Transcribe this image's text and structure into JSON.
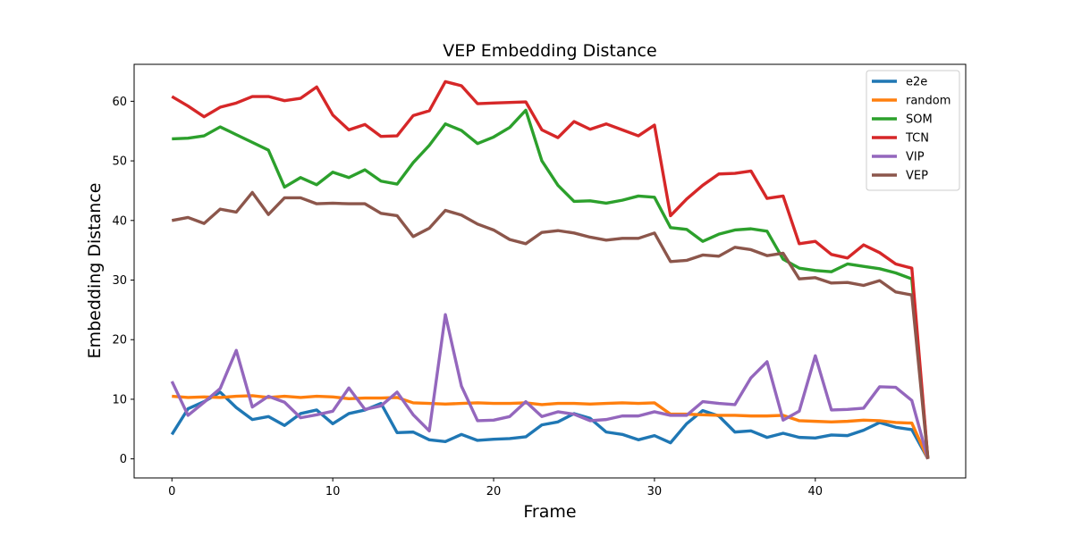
{
  "chart_data": {
    "type": "line",
    "title": "VEP Embedding Distance",
    "xlabel": "Frame",
    "ylabel": "Embedding Distance",
    "xlim": [
      -2.35,
      49.35
    ],
    "ylim": [
      -3.2,
      66.2
    ],
    "xticks": [
      0,
      10,
      20,
      30,
      40
    ],
    "yticks": [
      0,
      10,
      20,
      30,
      40,
      50,
      60
    ],
    "grid": false,
    "legend": "top-right",
    "x": [
      0,
      1,
      2,
      3,
      4,
      5,
      6,
      7,
      8,
      9,
      10,
      11,
      12,
      13,
      14,
      15,
      16,
      17,
      18,
      19,
      20,
      21,
      22,
      23,
      24,
      25,
      26,
      27,
      28,
      29,
      30,
      31,
      32,
      33,
      34,
      35,
      36,
      37,
      38,
      39,
      40,
      41,
      42,
      43,
      44,
      45,
      46,
      47
    ],
    "series": [
      {
        "name": "e2e",
        "color": "#1f77b4",
        "values": [
          4.1,
          8.4,
          9.6,
          11.2,
          8.6,
          6.6,
          7.1,
          5.6,
          7.6,
          8.2,
          5.9,
          7.6,
          8.2,
          9.3,
          4.4,
          4.5,
          3.2,
          2.9,
          4.1,
          3.1,
          3.3,
          3.4,
          3.7,
          5.7,
          6.2,
          7.6,
          6.8,
          4.5,
          4.1,
          3.2,
          3.9,
          2.7,
          5.9,
          8.1,
          7.2,
          4.5,
          4.7,
          3.6,
          4.3,
          3.6,
          3.5,
          4.0,
          3.9,
          4.8,
          6.1,
          5.3,
          4.9,
          0.0
        ]
      },
      {
        "name": "random",
        "color": "#ff7f0e",
        "values": [
          10.5,
          10.3,
          10.4,
          10.3,
          10.5,
          10.6,
          10.3,
          10.5,
          10.3,
          10.5,
          10.4,
          10.1,
          10.2,
          10.2,
          10.3,
          9.4,
          9.3,
          9.2,
          9.3,
          9.4,
          9.3,
          9.3,
          9.4,
          9.1,
          9.3,
          9.3,
          9.2,
          9.3,
          9.4,
          9.3,
          9.4,
          7.5,
          7.5,
          7.4,
          7.3,
          7.3,
          7.2,
          7.2,
          7.3,
          6.4,
          6.3,
          6.2,
          6.3,
          6.5,
          6.4,
          6.1,
          6.0,
          0.0
        ]
      },
      {
        "name": "SOM",
        "color": "#2ca02c",
        "values": [
          53.7,
          53.8,
          54.2,
          55.7,
          54.4,
          53.1,
          51.8,
          45.6,
          47.2,
          46.0,
          48.1,
          47.2,
          48.5,
          46.6,
          46.1,
          49.7,
          52.6,
          56.2,
          55.1,
          52.9,
          54.0,
          55.6,
          58.5,
          50.0,
          45.9,
          43.2,
          43.3,
          42.9,
          43.4,
          44.1,
          43.9,
          38.8,
          38.5,
          36.5,
          37.7,
          38.4,
          38.6,
          38.2,
          33.5,
          32.0,
          31.6,
          31.4,
          32.7,
          32.3,
          31.9,
          31.2,
          30.2,
          0.0
        ]
      },
      {
        "name": "TCN",
        "color": "#d62728",
        "values": [
          60.8,
          59.2,
          57.4,
          59.0,
          59.7,
          60.8,
          60.8,
          60.1,
          60.5,
          62.4,
          57.7,
          55.2,
          56.1,
          54.1,
          54.2,
          57.6,
          58.4,
          63.3,
          62.6,
          59.6,
          59.7,
          59.8,
          59.9,
          55.2,
          53.9,
          56.6,
          55.3,
          56.2,
          55.2,
          54.2,
          56.0,
          40.8,
          43.6,
          45.9,
          47.8,
          47.9,
          48.3,
          43.7,
          44.1,
          36.1,
          36.5,
          34.3,
          33.7,
          35.9,
          34.6,
          32.7,
          32.0,
          0.0
        ]
      },
      {
        "name": "VIP",
        "color": "#9467bd",
        "values": [
          13.0,
          7.3,
          9.5,
          11.8,
          18.2,
          8.7,
          10.5,
          9.5,
          6.9,
          7.4,
          8.0,
          11.9,
          8.3,
          8.9,
          11.2,
          7.4,
          4.7,
          24.2,
          12.2,
          6.4,
          6.5,
          7.1,
          9.6,
          7.1,
          7.9,
          7.5,
          6.4,
          6.6,
          7.2,
          7.2,
          7.9,
          7.3,
          7.3,
          9.6,
          9.3,
          9.1,
          13.6,
          16.3,
          6.5,
          8.0,
          17.3,
          8.2,
          8.3,
          8.5,
          12.1,
          12.0,
          9.8,
          0.0
        ]
      },
      {
        "name": "VEP",
        "color": "#8c564b",
        "values": [
          40.0,
          40.5,
          39.5,
          41.9,
          41.4,
          44.7,
          41.0,
          43.8,
          43.8,
          42.8,
          42.9,
          42.8,
          42.8,
          41.2,
          40.8,
          37.3,
          38.7,
          41.7,
          40.9,
          39.4,
          38.4,
          36.8,
          36.1,
          38.0,
          38.3,
          37.9,
          37.2,
          36.7,
          37.0,
          37.0,
          37.9,
          33.1,
          33.3,
          34.2,
          34.0,
          35.5,
          35.1,
          34.1,
          34.5,
          30.2,
          30.4,
          29.5,
          29.6,
          29.1,
          29.9,
          28.0,
          27.5,
          0.0
        ]
      }
    ]
  }
}
